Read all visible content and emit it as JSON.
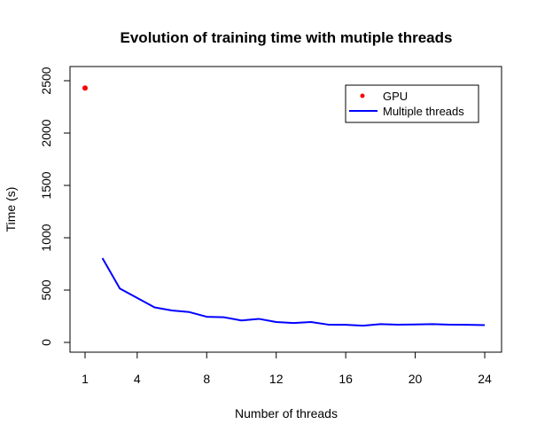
{
  "chart_data": {
    "type": "line",
    "title": "Evolution of training time with mutiple threads",
    "xlabel": "Number of threads",
    "ylabel": "Time (s)",
    "xlim": [
      1,
      24
    ],
    "ylim": [
      0,
      2500
    ],
    "x_ticks": [
      "1",
      "4",
      "8",
      "12",
      "16",
      "20",
      "24"
    ],
    "y_ticks": [
      "0",
      "500",
      "1000",
      "1500",
      "2000",
      "2500"
    ],
    "grid": false,
    "legend_position": "top-right",
    "series": [
      {
        "name": "GPU",
        "kind": "point",
        "color": "#ff0000",
        "x": [
          1
        ],
        "y": [
          2430
        ]
      },
      {
        "name": "Multiple threads",
        "kind": "line",
        "color": "#0000ff",
        "x": [
          2,
          3,
          4,
          5,
          6,
          7,
          8,
          9,
          10,
          11,
          12,
          13,
          14,
          15,
          16,
          17,
          18,
          19,
          20,
          21,
          22,
          23,
          24
        ],
        "y": [
          805,
          515,
          425,
          335,
          305,
          290,
          245,
          240,
          210,
          225,
          195,
          185,
          195,
          170,
          168,
          160,
          175,
          170,
          172,
          175,
          170,
          168,
          165
        ]
      }
    ]
  }
}
